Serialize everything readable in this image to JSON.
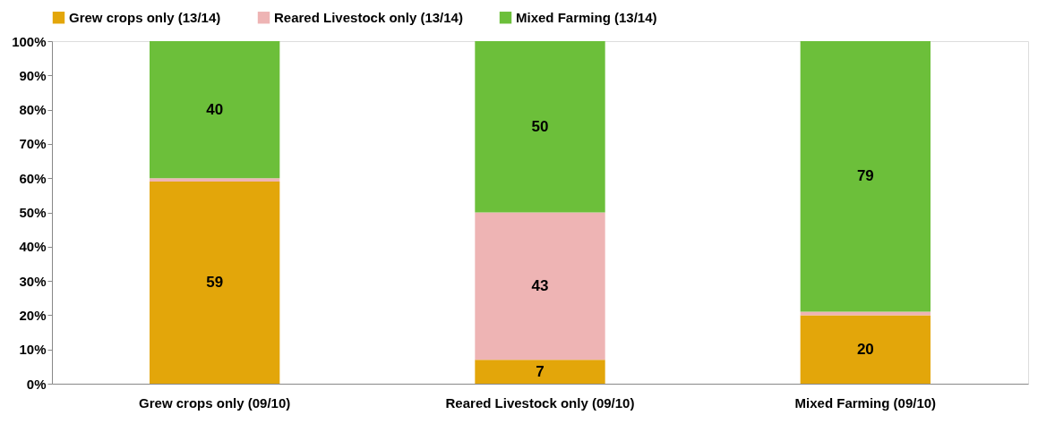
{
  "chart_data": {
    "type": "bar",
    "stacked": true,
    "categories": [
      "Grew crops only (09/10)",
      "Reared Livestock only (09/10)",
      "Mixed Farming (09/10)"
    ],
    "series": [
      {
        "name": "Grew crops only (13/14)",
        "color": "#e3a60a",
        "values": [
          59,
          7,
          20
        ],
        "value_labels": [
          "59",
          "7",
          "20"
        ]
      },
      {
        "name": "Reared Livestock only (13/14)",
        "color": "#eeb4b4",
        "values": [
          1,
          43,
          1
        ],
        "value_labels": [
          null,
          "43",
          null
        ]
      },
      {
        "name": "Mixed Farming (13/14)",
        "color": "#6cbf3a",
        "values": [
          40,
          50,
          79
        ],
        "value_labels": [
          "40",
          "50",
          "79"
        ]
      }
    ],
    "ylim": [
      0,
      100
    ],
    "yticks": [
      {
        "value": 0,
        "label": "0%"
      },
      {
        "value": 10,
        "label": "10%"
      },
      {
        "value": 20,
        "label": "20%"
      },
      {
        "value": 30,
        "label": "30%"
      },
      {
        "value": 40,
        "label": "40%"
      },
      {
        "value": 50,
        "label": "50%"
      },
      {
        "value": 60,
        "label": "60%"
      },
      {
        "value": 70,
        "label": "70%"
      },
      {
        "value": 80,
        "label": "80%"
      },
      {
        "value": 90,
        "label": "90%"
      },
      {
        "value": 100,
        "label": "100%"
      }
    ],
    "legend": "top",
    "grid": false
  }
}
